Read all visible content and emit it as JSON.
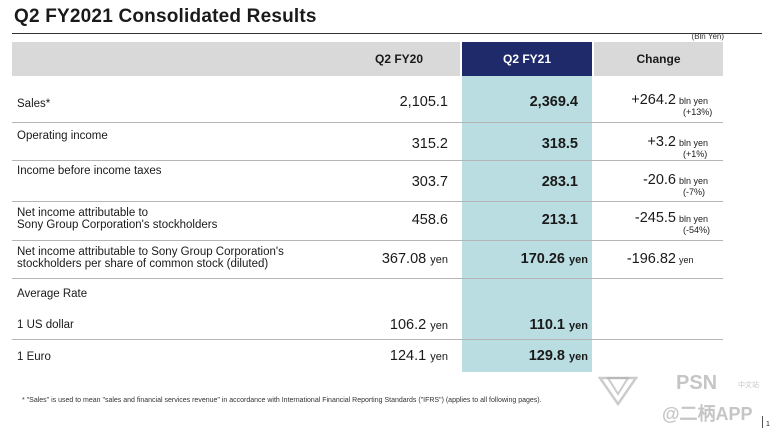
{
  "title": "Q2 FY2021  Consolidated Results",
  "unit": "(Bln Yen)",
  "columns": {
    "fy20": "Q2 FY20",
    "fy21": "Q2 FY21",
    "change": "Change"
  },
  "rows": [
    {
      "label": [
        "Sales*"
      ],
      "fy20": "2,105.1",
      "fy21": "2,369.4",
      "change": "+264.2",
      "change_unit": "bln yen",
      "change_pct": "(+13%)"
    },
    {
      "label": [
        "Operating income"
      ],
      "fy20": "315.2",
      "fy21": "318.5",
      "change": "+3.2",
      "change_unit": "bln yen",
      "change_pct": "(+1%)"
    },
    {
      "label": [
        "Income before income taxes"
      ],
      "fy20": "303.7",
      "fy21": "283.1",
      "change": "-20.6",
      "change_unit": "bln yen",
      "change_pct": "(-7%)"
    },
    {
      "label": [
        "Net income attributable to",
        "Sony Group Corporation's stockholders"
      ],
      "fy20": "458.6",
      "fy21": "213.1",
      "change": "-245.5",
      "change_unit": "bln yen",
      "change_pct": "(-54%)"
    },
    {
      "label": [
        "Net income attributable to Sony Group Corporation's",
        "stockholders per share of common stock (diluted)"
      ],
      "fy20": "367.08",
      "fy20_unit": "yen",
      "fy21": "170.26",
      "fy21_unit": "yen",
      "change": "-196.82",
      "change_unit": "yen"
    }
  ],
  "average_rate": {
    "label": "Average Rate",
    "items": [
      {
        "label": "1 US dollar",
        "fy20": "106.2",
        "fy20_unit": "yen",
        "fy21": "110.1",
        "fy21_unit": "yen"
      },
      {
        "label": "1 Euro",
        "fy20": "124.1",
        "fy20_unit": "yen",
        "fy21": "129.8",
        "fy21_unit": "yen"
      }
    ]
  },
  "footnote": "* \"Sales\" is used to mean \"sales and financial services revenue\" in accordance with International Financial Reporting Standards (\"IFRS\") (applies to all following pages).",
  "page_number": "1",
  "watermark": {
    "brand": "PSN",
    "sub": "中文站",
    "handle": "@二柄APP"
  },
  "colors": {
    "header_bg": "#d9d9d9",
    "fy21_header": "#1f2a6b",
    "fy21_band": "#b9dde1"
  }
}
